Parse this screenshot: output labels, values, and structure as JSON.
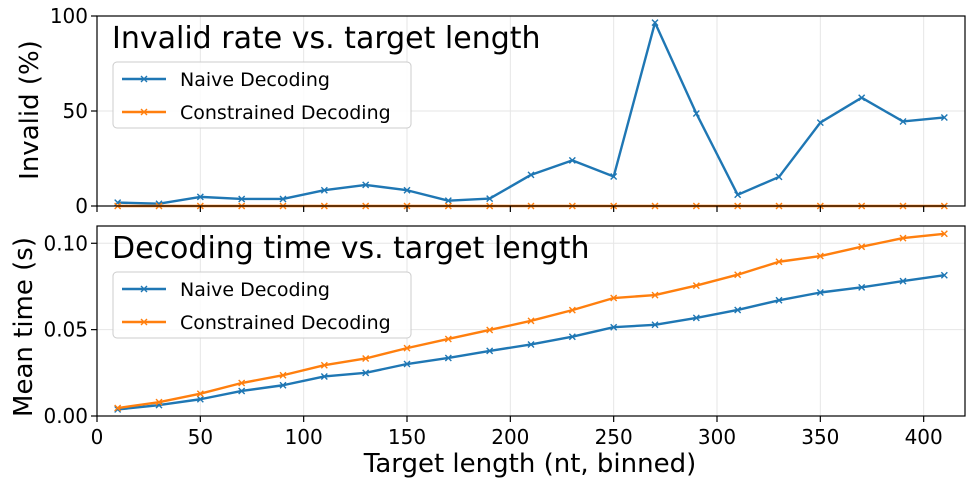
{
  "chart_data": [
    {
      "type": "line",
      "title": "Invalid rate vs. target length",
      "xlabel": "",
      "ylabel": "Invalid (%)",
      "xlim": [
        0,
        420
      ],
      "ylim": [
        0,
        100
      ],
      "yticks": [
        0,
        50,
        100
      ],
      "ytick_labels": [
        "0",
        "50",
        "100"
      ],
      "grid": true,
      "legend_position": "upper-left",
      "x": [
        10,
        30,
        50,
        70,
        90,
        110,
        130,
        150,
        170,
        190,
        210,
        230,
        250,
        270,
        290,
        310,
        330,
        350,
        370,
        390,
        410
      ],
      "series": [
        {
          "name": "Naive Decoding",
          "color": "#1f77b4",
          "values": [
            1.8,
            1.2,
            4.8,
            3.7,
            3.7,
            8.3,
            11.1,
            8.3,
            2.8,
            3.9,
            16.4,
            24.0,
            15.5,
            96.5,
            48.7,
            5.9,
            15.3,
            43.9,
            57.0,
            44.5,
            46.6
          ]
        },
        {
          "name": "Constrained Decoding",
          "color": "#ff7f0e",
          "values": [
            0,
            0,
            0,
            0,
            0,
            0,
            0,
            0,
            0,
            0,
            0,
            0,
            0,
            0,
            0,
            0,
            0,
            0,
            0,
            0,
            0
          ]
        }
      ]
    },
    {
      "type": "line",
      "title": "Decoding time vs. target length",
      "xlabel": "Target length (nt, binned)",
      "ylabel": "Mean time (s)",
      "xlim": [
        0,
        420
      ],
      "ylim": [
        0,
        0.11
      ],
      "xticks": [
        0,
        50,
        100,
        150,
        200,
        250,
        300,
        350,
        400
      ],
      "xtick_labels": [
        "0",
        "50",
        "100",
        "150",
        "200",
        "250",
        "300",
        "350",
        "400"
      ],
      "yticks": [
        0,
        0.05,
        0.1
      ],
      "ytick_labels": [
        "0.00",
        "0.05",
        "0.10"
      ],
      "grid": true,
      "legend_position": "upper-left",
      "x": [
        10,
        30,
        50,
        70,
        90,
        110,
        130,
        150,
        170,
        190,
        210,
        230,
        250,
        270,
        290,
        310,
        330,
        350,
        370,
        390,
        410
      ],
      "series": [
        {
          "name": "Naive Decoding",
          "color": "#1f77b4",
          "values": [
            0.0038,
            0.0063,
            0.0097,
            0.0145,
            0.0178,
            0.0229,
            0.025,
            0.0301,
            0.0336,
            0.0377,
            0.0414,
            0.0459,
            0.0514,
            0.0528,
            0.0568,
            0.0614,
            0.067,
            0.0715,
            0.0745,
            0.0781,
            0.0815
          ]
        },
        {
          "name": "Constrained Decoding",
          "color": "#ff7f0e",
          "values": [
            0.0046,
            0.008,
            0.0129,
            0.0191,
            0.0236,
            0.0294,
            0.0333,
            0.0393,
            0.0446,
            0.0498,
            0.0551,
            0.0613,
            0.0683,
            0.07,
            0.0755,
            0.0818,
            0.0893,
            0.0926,
            0.098,
            0.103,
            0.1055
          ]
        }
      ]
    }
  ]
}
